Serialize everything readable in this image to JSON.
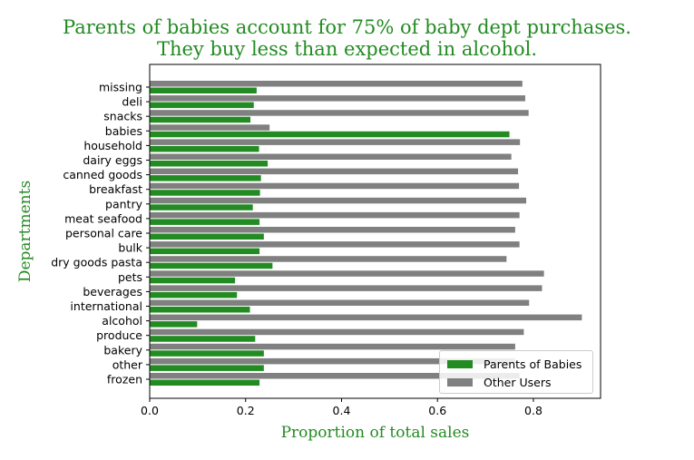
{
  "colors": {
    "title": "#228b22",
    "parents": "#228b22",
    "others": "#808080"
  },
  "chart_data": {
    "type": "bar",
    "orientation": "horizontal",
    "title": [
      "Parents of babies account for 75% of baby dept purchases.",
      "They buy less than expected in alcohol."
    ],
    "xlabel": "Proportion of total sales",
    "ylabel": "Departments",
    "xlim": [
      0,
      0.94
    ],
    "xticks": [
      0.0,
      0.2,
      0.4,
      0.6,
      0.8
    ],
    "xtick_labels": [
      "0.0",
      "0.2",
      "0.4",
      "0.6",
      "0.8"
    ],
    "grid": false,
    "legend_position": "bottom-right",
    "categories": [
      "missing",
      "deli",
      "snacks",
      "babies",
      "household",
      "dairy eggs",
      "canned goods",
      "breakfast",
      "pantry",
      "meat seafood",
      "personal care",
      "bulk",
      "dry goods pasta",
      "pets",
      "beverages",
      "international",
      "alcohol",
      "produce",
      "bakery",
      "other",
      "frozen"
    ],
    "series": [
      {
        "name": "Parents of Babies",
        "color": "#228b22",
        "values": [
          0.223,
          0.217,
          0.21,
          0.75,
          0.228,
          0.246,
          0.232,
          0.23,
          0.215,
          0.229,
          0.238,
          0.229,
          0.256,
          0.178,
          0.182,
          0.209,
          0.099,
          0.22,
          0.238,
          0.238,
          0.229
        ]
      },
      {
        "name": "Other Users",
        "color": "#808080",
        "values": [
          0.777,
          0.783,
          0.79,
          0.25,
          0.772,
          0.754,
          0.768,
          0.77,
          0.785,
          0.771,
          0.762,
          0.771,
          0.744,
          0.822,
          0.818,
          0.791,
          0.901,
          0.78,
          0.762,
          0.762,
          0.771
        ]
      }
    ]
  }
}
